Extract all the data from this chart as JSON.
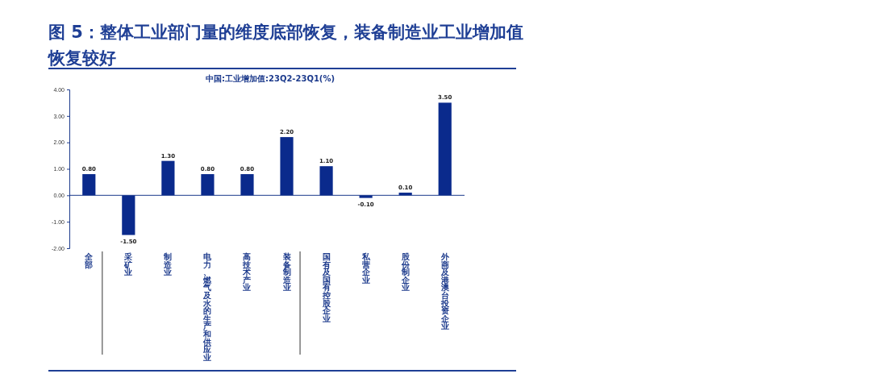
{
  "chart_data": {
    "type": "bar",
    "title": "图 5：整体工业部门量的维度底部恢复，装备制造业工业增加值恢复较好",
    "subtitle": "中国:工业增加值:23Q2-23Q1(%)",
    "categories": [
      "全部",
      "采矿业",
      "制造业",
      "电力、燃气及水的生产和供应业",
      "高技术产业",
      "装备制造业",
      "国有及国有控股企业",
      "私营企业",
      "股份制企业",
      "外商及港澳台投资企业"
    ],
    "values": [
      0.8,
      -1.5,
      1.3,
      0.8,
      0.8,
      2.2,
      1.1,
      -0.1,
      0.1,
      3.5
    ],
    "value_labels": [
      "0.80",
      "-1.50",
      "1.30",
      "0.80",
      "0.80",
      "2.20",
      "1.10",
      "-0.10",
      "0.10",
      "3.50"
    ],
    "color": "#0a2a8c",
    "ylim": [
      -2,
      4
    ],
    "ref_lines": [
      {
        "axis": "y",
        "value": 0,
        "color": "#1c3a8c"
      }
    ],
    "yticks": [
      {
        "value": -2,
        "label": "-2.00"
      },
      {
        "value": -1,
        "label": "-1.00"
      },
      {
        "value": 0,
        "label": "0.00"
      },
      {
        "value": 1,
        "label": "1.00"
      },
      {
        "value": 2,
        "label": "2.00"
      },
      {
        "value": 3,
        "label": "3.00"
      },
      {
        "value": 4,
        "label": "4.00"
      }
    ]
  }
}
